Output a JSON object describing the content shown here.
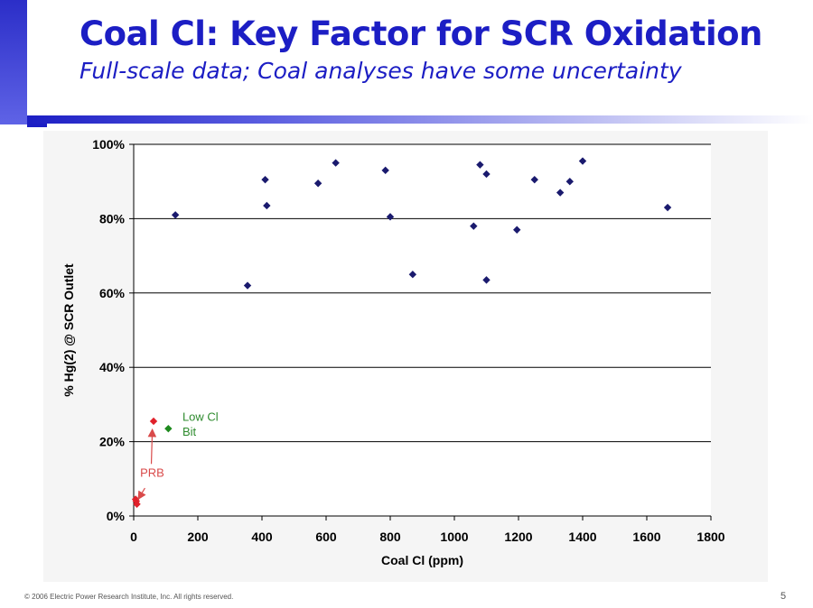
{
  "header": {
    "title": "Coal Cl: Key Factor for SCR Oxidation",
    "subtitle": "Full-scale data; Coal analyses have some uncertainty"
  },
  "footer": {
    "copyright": "© 2006 Electric Power Research Institute, Inc. All rights reserved.",
    "page_number": "5"
  },
  "colors": {
    "title": "#1c1ec4",
    "series_main": "#1a1a6e",
    "series_prb": "#e0202a",
    "series_low_cl": "#1e8a1e",
    "annotation_prb": "#d94a4a",
    "annotation_low_cl": "#2e8b2e"
  },
  "chart_data": {
    "type": "scatter",
    "title": "",
    "xlabel": "Coal Cl (ppm)",
    "ylabel": "% Hg(2) @ SCR Outlet",
    "xlim": [
      0,
      1800
    ],
    "ylim": [
      0,
      100
    ],
    "x_ticks": [
      "0",
      "200",
      "400",
      "600",
      "800",
      "1000",
      "1200",
      "1400",
      "1600",
      "1800"
    ],
    "y_ticks": [
      "0%",
      "20%",
      "40%",
      "60%",
      "80%",
      "100%"
    ],
    "grid": "horizontal",
    "series": [
      {
        "color": "#1a1a6e",
        "points": [
          [
            130,
            81
          ],
          [
            355,
            62
          ],
          [
            410,
            90.5
          ],
          [
            415,
            83.5
          ],
          [
            575,
            89.5
          ],
          [
            630,
            95
          ],
          [
            785,
            93
          ],
          [
            800,
            80.5
          ],
          [
            870,
            65
          ],
          [
            1060,
            78
          ],
          [
            1080,
            94.5
          ],
          [
            1100,
            92
          ],
          [
            1100,
            63.5
          ],
          [
            1195,
            77
          ],
          [
            1250,
            90.5
          ],
          [
            1330,
            87
          ],
          [
            1360,
            90
          ],
          [
            1400,
            95.5
          ],
          [
            1665,
            83
          ]
        ]
      },
      {
        "color": "#e0202a",
        "points": [
          [
            62,
            25.5
          ],
          [
            8,
            4
          ],
          [
            10,
            3.2
          ],
          [
            6,
            4.5
          ]
        ]
      },
      {
        "color": "#1e8a1e",
        "points": [
          [
            108,
            23.5
          ]
        ]
      }
    ],
    "annotations": [
      {
        "text": "PRB",
        "color": "#d94a4a"
      },
      {
        "text": "Low Cl",
        "color": "#2e8b2e"
      },
      {
        "text": "Bit",
        "color": "#2e8b2e"
      }
    ]
  }
}
